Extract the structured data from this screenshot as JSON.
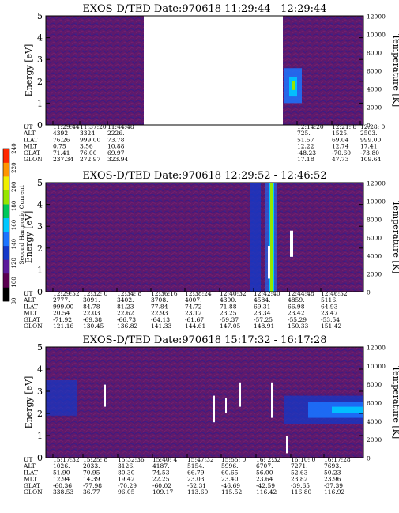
{
  "colorbar": {
    "label": "Second Harmonic Current",
    "ticks": [
      "80",
      "100",
      "120",
      "140",
      "160",
      "180",
      "200",
      "220",
      "240"
    ],
    "colors": [
      "#000000",
      "#5a0050",
      "#5a1a9a",
      "#1438c8",
      "#1c74ff",
      "#00c8ff",
      "#00c85a",
      "#96e600",
      "#f0f000",
      "#ff9600",
      "#ff2800"
    ]
  },
  "chart_data": [
    {
      "type": "heatmap",
      "title": "EXOS-D/TED   Date:970618   11:29:44 - 12:29:44",
      "ylabel": "Energy [eV]",
      "ylabel_right": "Temperature [K]",
      "ylim": [
        0,
        5
      ],
      "yticks": [
        "0",
        "1",
        "2",
        "3",
        "4",
        "5"
      ],
      "ylim_right": [
        0,
        12000
      ],
      "yticks_right": [
        "0",
        "2000",
        "4000",
        "6000",
        "8000",
        "10000",
        "12000"
      ],
      "data_gap": [
        "11:44:48",
        "12:14:20"
      ],
      "row_labels": [
        "UT",
        "ALT",
        "ILAT",
        "MLT",
        "GLAT",
        "GLON"
      ],
      "columns": [
        {
          "values": [
            "11:29:44",
            "4392",
            "76.26",
            "0.75",
            "71.41",
            "237.34"
          ]
        },
        {
          "values": [
            "11:37:20",
            "3324",
            "999.00",
            "3.56",
            "76.00",
            "272.97"
          ]
        },
        {
          "values": [
            "11:44:48",
            "2226.",
            "73.78",
            "10.88",
            "69.97",
            "323.94"
          ]
        },
        {
          "values": [
            "12:14:20",
            "725.",
            "51.57",
            "12.22",
            "-48.23",
            "17.18"
          ]
        },
        {
          "values": [
            "12:21: 8",
            "1525.",
            "69.04",
            "12.74",
            "-70.60",
            "47.73"
          ]
        },
        {
          "values": [
            "12:28: 0",
            "2503.",
            "999.00",
            "17.41",
            "-73.80",
            "109.64"
          ]
        }
      ]
    },
    {
      "type": "heatmap",
      "title": "EXOS-D/TED   Date:970618   12:29:52 - 12:46:52",
      "ylabel": "Energy [eV]",
      "ylabel_right": "Temperature [K]",
      "ylim": [
        0,
        5
      ],
      "yticks": [
        "0",
        "1",
        "2",
        "3",
        "4",
        "5"
      ],
      "ylim_right": [
        0,
        12000
      ],
      "yticks_right": [
        "0",
        "2000",
        "4000",
        "6000",
        "8000",
        "10000",
        "12000"
      ],
      "row_labels": [
        "UT",
        "ALT",
        "ILAT",
        "MLT",
        "GLAT",
        "GLON"
      ],
      "columns": [
        {
          "values": [
            "12:29:52",
            "2777.",
            "999.00",
            "20.54",
            "-71.92",
            "121.16"
          ]
        },
        {
          "values": [
            "12:32: 0",
            "3091.",
            "84.78",
            "22.03",
            "-69.38",
            "130.45"
          ]
        },
        {
          "values": [
            "12:34: 8",
            "3402.",
            "81.23",
            "22.62",
            "-66.73",
            "136.82"
          ]
        },
        {
          "values": [
            "12:36:16",
            "3708.",
            "77.84",
            "22.93",
            "-64.13",
            "141.33"
          ]
        },
        {
          "values": [
            "12:38:24",
            "4007.",
            "74.72",
            "23.12",
            "-61.67",
            "144.61"
          ]
        },
        {
          "values": [
            "12:40:32",
            "4300.",
            "71.88",
            "23.25",
            "-59.37",
            "147.05"
          ]
        },
        {
          "values": [
            "12:42:40",
            "4584.",
            "69.31",
            "23.34",
            "-57.25",
            "148.91"
          ]
        },
        {
          "values": [
            "12:44:48",
            "4859.",
            "66.98",
            "23.42",
            "-55.29",
            "150.33"
          ]
        },
        {
          "values": [
            "12:46:52",
            "5116.",
            "64.93",
            "23.47",
            "-53.54",
            "151.42"
          ]
        }
      ]
    },
    {
      "type": "heatmap",
      "title": "EXOS-D/TED   Date:970618   15:17:32 - 16:17:28",
      "ylabel": "Energy [eV]",
      "ylabel_right": "Temperature [K]",
      "ylim": [
        0,
        5
      ],
      "yticks": [
        "0",
        "1",
        "2",
        "3",
        "4",
        "5"
      ],
      "ylim_right": [
        0,
        12000
      ],
      "yticks_right": [
        "0",
        "2000",
        "4000",
        "6000",
        "8000",
        "10000",
        "12000"
      ],
      "row_labels": [
        "UT",
        "ALT",
        "ILAT",
        "MLT",
        "GLAT",
        "GLON"
      ],
      "columns": [
        {
          "values": [
            "15:17:32",
            "1026.",
            "51.90",
            "12.94",
            "-60.36",
            "338.53"
          ]
        },
        {
          "values": [
            "15:25: 8",
            "2033.",
            "70.95",
            "14.39",
            "-77.98",
            "36.77"
          ]
        },
        {
          "values": [
            "15:32:36",
            "3126.",
            "80.30",
            "19.42",
            "-70.29",
            "96.05"
          ]
        },
        {
          "values": [
            "15:40: 4",
            "4187.",
            "74.53",
            "22.25",
            "-60.02",
            "109.17"
          ]
        },
        {
          "values": [
            "15:47:32",
            "5154.",
            "66.79",
            "23.03",
            "-52.31",
            "113.60"
          ]
        },
        {
          "values": [
            "15:55: 0",
            "5996.",
            "60.65",
            "23.40",
            "-46.69",
            "115.52"
          ]
        },
        {
          "values": [
            "16: 2:32",
            "6707.",
            "56.00",
            "23.64",
            "-42.59",
            "116.42"
          ]
        },
        {
          "values": [
            "16:10: 0",
            "7271.",
            "52.63",
            "23.82",
            "-39.65",
            "116.80"
          ]
        },
        {
          "values": [
            "16:17:28",
            "7693.",
            "50.23",
            "23.96",
            "-37.39",
            "116.92"
          ]
        }
      ]
    }
  ]
}
